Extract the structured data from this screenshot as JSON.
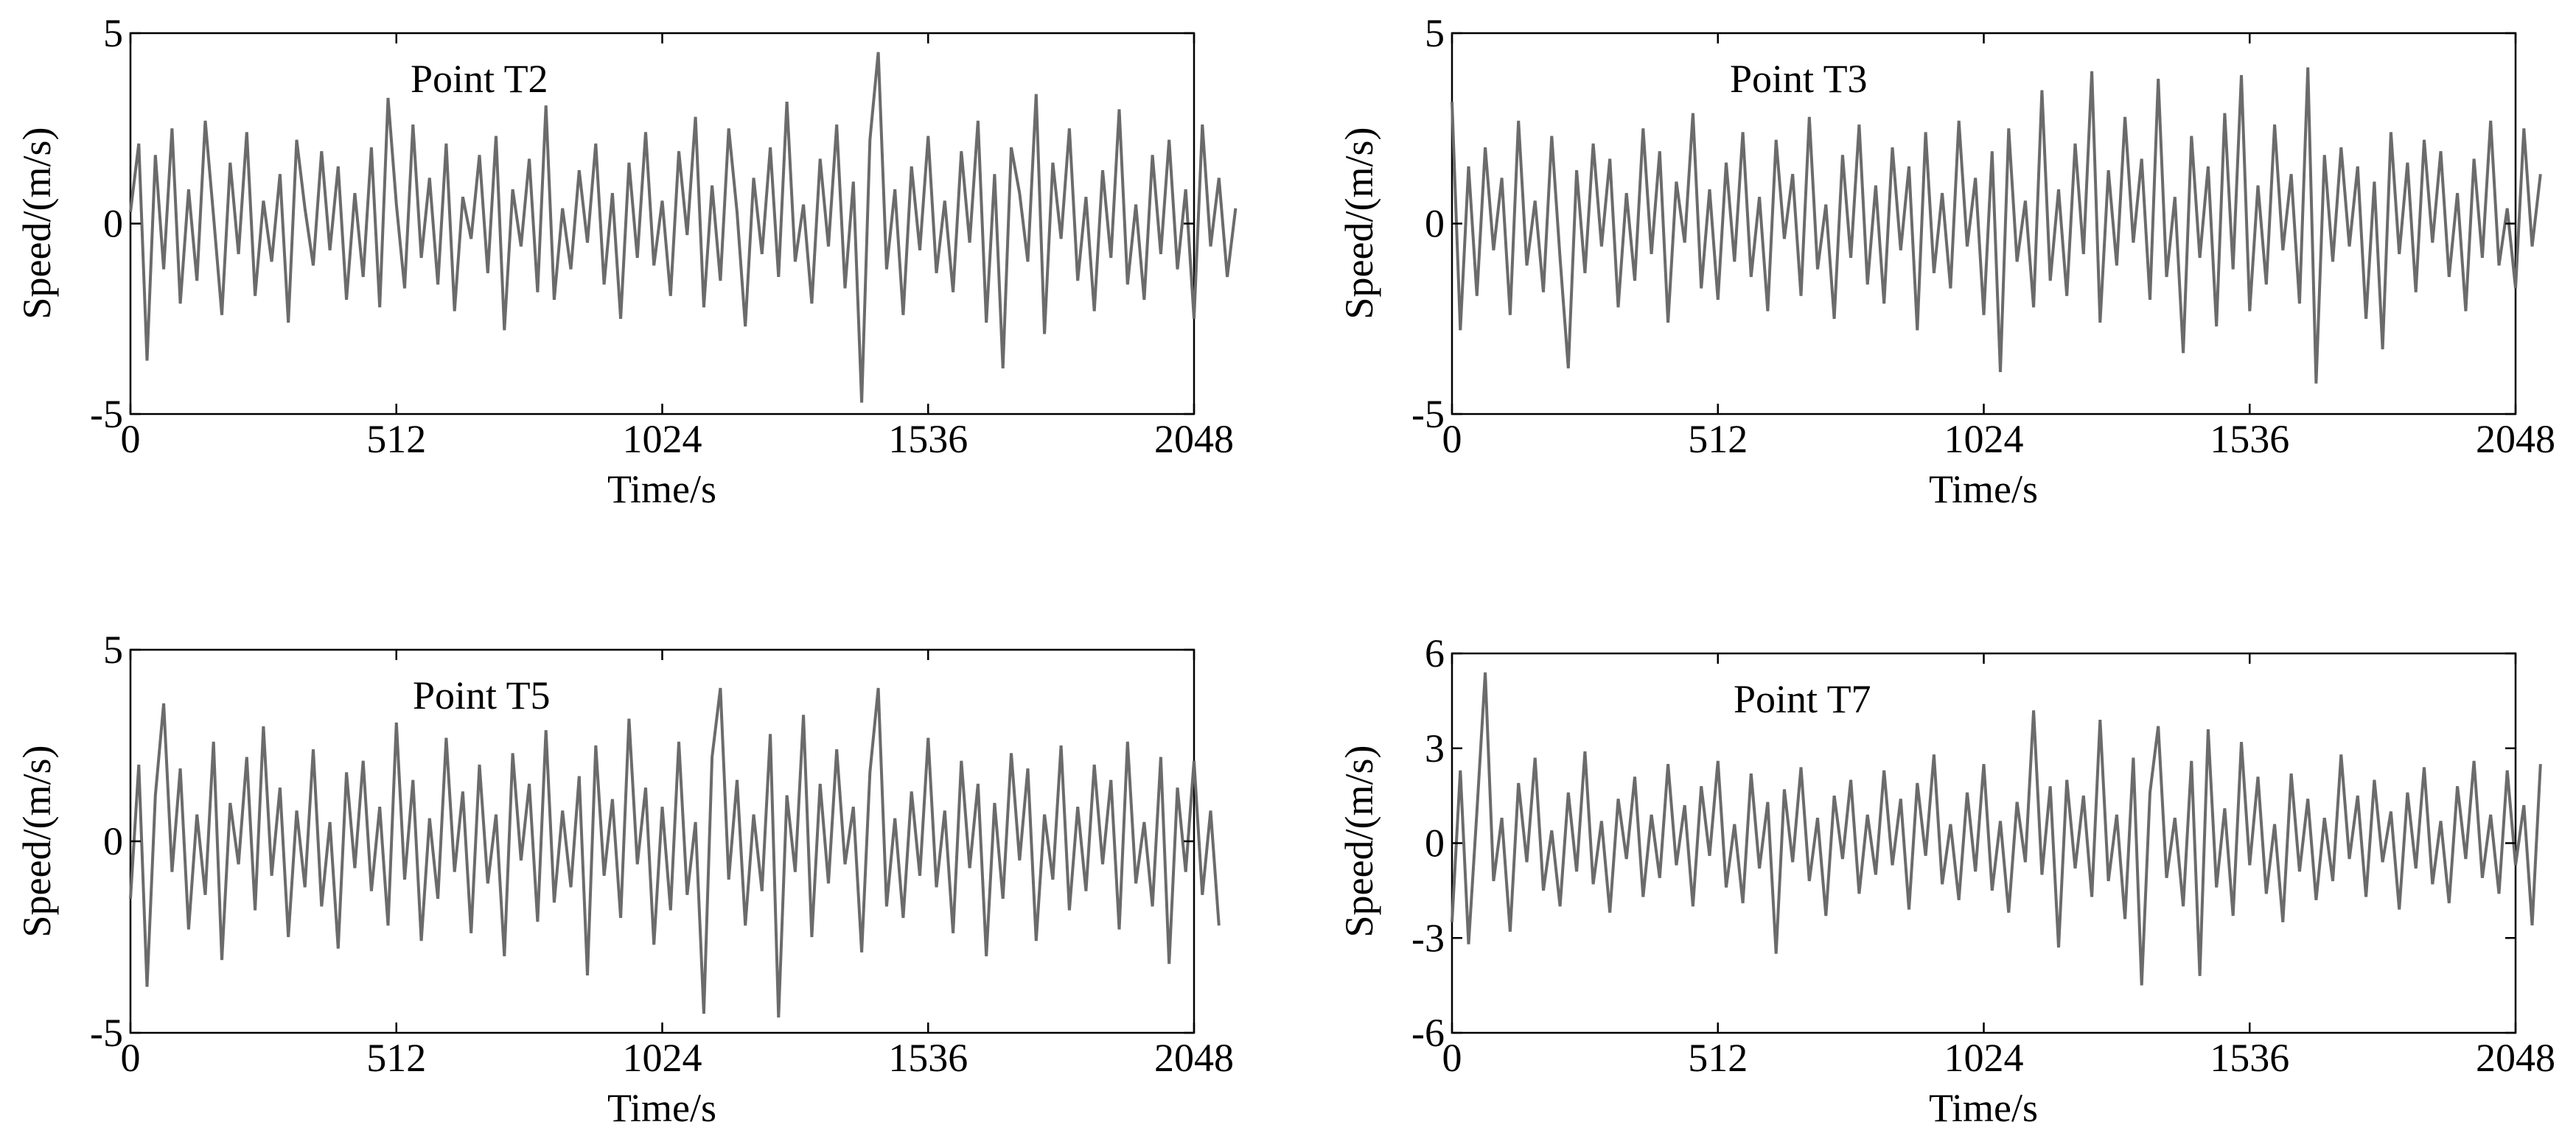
{
  "chart_data": [
    {
      "type": "line",
      "title": "Point T2",
      "xlabel": "Time/s",
      "ylabel": "Speed/(m/s)",
      "xlim": [
        0,
        2048
      ],
      "ylim": [
        -5,
        5
      ],
      "xticks": [
        0,
        512,
        1024,
        1536,
        2048
      ],
      "yticks": [
        -5,
        0,
        5
      ],
      "grid": false,
      "line_color": "#6b6b6b",
      "series": [
        {
          "sample_interval_s": 16,
          "values": [
            0.3,
            2.1,
            -3.6,
            1.8,
            -1.2,
            2.5,
            -2.1,
            0.9,
            -1.5,
            2.7,
            0.2,
            -2.4,
            1.6,
            -0.8,
            2.4,
            -1.9,
            0.6,
            -1.0,
            1.3,
            -2.6,
            2.2,
            0.4,
            -1.1,
            1.9,
            -0.7,
            1.5,
            -2.0,
            0.8,
            -1.4,
            2.0,
            -2.2,
            3.3,
            0.5,
            -1.7,
            2.6,
            -0.9,
            1.2,
            -1.6,
            2.1,
            -2.3,
            0.7,
            -0.4,
            1.8,
            -1.3,
            2.3,
            -2.8,
            0.9,
            -0.6,
            1.7,
            -1.8,
            3.1,
            -2.0,
            0.4,
            -1.2,
            1.4,
            -0.5,
            2.1,
            -1.6,
            0.8,
            -2.5,
            1.6,
            -0.9,
            2.4,
            -1.1,
            0.6,
            -1.9,
            1.9,
            -0.3,
            2.8,
            -2.2,
            1.0,
            -1.5,
            2.5,
            0.3,
            -2.7,
            1.2,
            -0.8,
            2.0,
            -1.4,
            3.2,
            -1.0,
            0.5,
            -2.1,
            1.7,
            -0.6,
            2.6,
            -1.7,
            1.1,
            -4.7,
            2.2,
            4.5,
            -1.2,
            0.9,
            -2.4,
            1.5,
            -0.7,
            2.3,
            -1.3,
            0.6,
            -1.8,
            1.9,
            -0.5,
            2.7,
            -2.6,
            1.3,
            -3.8,
            2.0,
            0.8,
            -1.0,
            3.4,
            -2.9,
            1.6,
            -0.4,
            2.5,
            -1.5,
            0.7,
            -2.3,
            1.4,
            -0.9,
            3.0,
            -1.6,
            0.5,
            -2.0,
            1.8,
            -0.8,
            2.2,
            -1.2,
            0.9,
            -2.5,
            2.6,
            -0.6,
            1.2,
            -1.4,
            0.4
          ]
        }
      ]
    },
    {
      "type": "line",
      "title": "Point T3",
      "xlabel": "Time/s",
      "ylabel": "Speed/(m/s)",
      "xlim": [
        0,
        2048
      ],
      "ylim": [
        -5,
        5
      ],
      "xticks": [
        0,
        512,
        1024,
        1536,
        2048
      ],
      "yticks": [
        -5,
        0,
        5
      ],
      "grid": false,
      "line_color": "#6b6b6b",
      "series": [
        {
          "sample_interval_s": 16,
          "values": [
            3.2,
            -2.8,
            1.5,
            -1.9,
            2.0,
            -0.7,
            1.2,
            -2.4,
            2.7,
            -1.1,
            0.6,
            -1.8,
            2.3,
            -0.9,
            -3.8,
            1.4,
            -1.3,
            2.1,
            -0.6,
            1.7,
            -2.2,
            0.8,
            -1.5,
            2.5,
            -0.8,
            1.9,
            -2.6,
            1.1,
            -0.5,
            2.9,
            -1.7,
            0.9,
            -2.0,
            1.6,
            -1.0,
            2.4,
            -1.4,
            0.7,
            -2.3,
            2.2,
            -0.4,
            1.3,
            -1.9,
            2.8,
            -1.2,
            0.5,
            -2.5,
            1.8,
            -0.9,
            2.6,
            -1.6,
            1.0,
            -2.1,
            2.0,
            -0.7,
            1.5,
            -2.8,
            2.4,
            -1.3,
            0.8,
            -1.7,
            2.7,
            -0.6,
            1.2,
            -2.4,
            1.9,
            -3.9,
            2.5,
            -1.0,
            0.6,
            -2.2,
            3.5,
            -1.5,
            0.9,
            -1.9,
            2.1,
            -0.8,
            4.0,
            -2.6,
            1.4,
            -1.1,
            2.8,
            -0.5,
            1.7,
            -2.0,
            3.8,
            -1.4,
            0.7,
            -3.4,
            2.3,
            -0.9,
            1.5,
            -2.7,
            2.9,
            -1.2,
            3.9,
            -2.3,
            1.0,
            -1.6,
            2.6,
            -0.7,
            1.3,
            -2.1,
            4.1,
            -4.2,
            1.8,
            -1.0,
            2.0,
            -0.6,
            1.5,
            -2.5,
            1.1,
            -3.3,
            2.4,
            -0.8,
            1.6,
            -1.8,
            2.2,
            -0.5,
            1.9,
            -1.4,
            0.8,
            -2.3,
            1.7,
            -0.9,
            2.7,
            -1.1,
            0.4,
            -1.7,
            2.5,
            -0.6,
            1.3
          ]
        }
      ]
    },
    {
      "type": "line",
      "title": "Point T5",
      "xlabel": "Time/s",
      "ylabel": "Speed/(m/s)",
      "xlim": [
        0,
        2048
      ],
      "ylim": [
        -5,
        5
      ],
      "xticks": [
        0,
        512,
        1024,
        1536,
        2048
      ],
      "yticks": [
        -5,
        0,
        5
      ],
      "grid": false,
      "line_color": "#6b6b6b",
      "series": [
        {
          "sample_interval_s": 16,
          "values": [
            -1.5,
            2.0,
            -3.8,
            1.2,
            3.6,
            -0.8,
            1.9,
            -2.3,
            0.7,
            -1.4,
            2.6,
            -3.1,
            1.0,
            -0.6,
            2.2,
            -1.8,
            3.0,
            -0.9,
            1.4,
            -2.5,
            0.8,
            -1.2,
            2.4,
            -1.7,
            0.5,
            -2.8,
            1.8,
            -0.7,
            2.1,
            -1.3,
            0.9,
            -2.2,
            3.1,
            -1.0,
            1.6,
            -2.6,
            0.6,
            -1.5,
            2.7,
            -0.8,
            1.3,
            -2.4,
            2.0,
            -1.1,
            0.7,
            -3.0,
            2.3,
            -0.5,
            1.5,
            -2.1,
            2.9,
            -1.6,
            0.8,
            -1.2,
            1.7,
            -3.5,
            2.5,
            -0.9,
            1.1,
            -2.0,
            3.2,
            -0.6,
            1.4,
            -2.7,
            0.9,
            -1.8,
            2.6,
            -1.4,
            0.5,
            -4.5,
            2.2,
            4.0,
            -1.0,
            1.6,
            -2.2,
            0.7,
            -1.3,
            2.8,
            -4.6,
            1.2,
            -0.8,
            3.3,
            -2.5,
            1.5,
            -1.1,
            2.4,
            -0.6,
            0.9,
            -2.9,
            1.8,
            4.0,
            -1.7,
            0.6,
            -2.0,
            1.3,
            -0.9,
            2.7,
            -1.2,
            0.8,
            -2.4,
            2.1,
            -0.7,
            1.5,
            -3.0,
            1.0,
            -1.5,
            2.3,
            -0.5,
            1.9,
            -2.6,
            0.7,
            -1.0,
            2.5,
            -1.8,
            0.9,
            -1.3,
            2.0,
            -0.6,
            1.6,
            -2.3,
            2.6,
            -1.1,
            0.5,
            -1.7,
            2.2,
            -3.2,
            1.4,
            -0.8,
            2.1,
            -1.4,
            0.8,
            -2.2
          ]
        }
      ]
    },
    {
      "type": "line",
      "title": "Point T7",
      "xlabel": "Time/s",
      "ylabel": "Speed/(m/s)",
      "xlim": [
        0,
        2048
      ],
      "ylim": [
        -6,
        6
      ],
      "xticks": [
        0,
        512,
        1024,
        1536,
        2048
      ],
      "yticks": [
        -6,
        -3,
        0,
        3,
        6
      ],
      "grid": false,
      "line_color": "#6b6b6b",
      "series": [
        {
          "sample_interval_s": 16,
          "values": [
            -2.5,
            2.3,
            -3.2,
            1.0,
            5.4,
            -1.2,
            0.8,
            -2.8,
            1.9,
            -0.6,
            2.7,
            -1.5,
            0.4,
            -2.0,
            1.6,
            -0.9,
            2.9,
            -1.3,
            0.7,
            -2.2,
            1.4,
            -0.5,
            2.1,
            -1.7,
            0.9,
            -1.1,
            2.5,
            -0.7,
            1.2,
            -2.0,
            1.8,
            -0.4,
            2.6,
            -1.4,
            0.6,
            -1.9,
            2.2,
            -0.8,
            1.3,
            -3.5,
            1.7,
            -0.6,
            2.4,
            -1.2,
            0.8,
            -2.3,
            1.5,
            -0.5,
            2.0,
            -1.6,
            0.9,
            -1.0,
            2.3,
            -0.7,
            1.4,
            -2.1,
            1.9,
            -0.4,
            2.8,
            -1.3,
            0.6,
            -1.8,
            1.6,
            -0.9,
            2.5,
            -1.5,
            0.7,
            -2.2,
            1.3,
            -0.6,
            4.2,
            -1.0,
            1.8,
            -3.3,
            2.0,
            -0.8,
            1.5,
            -1.7,
            3.9,
            -1.2,
            0.9,
            -2.4,
            2.7,
            -4.5,
            1.6,
            3.7,
            -1.1,
            0.8,
            -2.0,
            2.6,
            -4.2,
            3.6,
            -1.4,
            1.1,
            -2.3,
            3.2,
            -0.7,
            2.1,
            -1.6,
            0.6,
            -2.5,
            2.2,
            -0.9,
            1.4,
            -1.8,
            0.8,
            -1.2,
            2.8,
            -0.5,
            1.5,
            -1.7,
            2.0,
            -0.6,
            1.0,
            -2.1,
            1.6,
            -0.8,
            2.4,
            -1.3,
            0.7,
            -1.9,
            1.8,
            -0.5,
            2.6,
            -1.1,
            0.9,
            -1.6,
            2.3,
            -0.7,
            1.2,
            -2.6,
            2.5
          ]
        }
      ]
    }
  ]
}
